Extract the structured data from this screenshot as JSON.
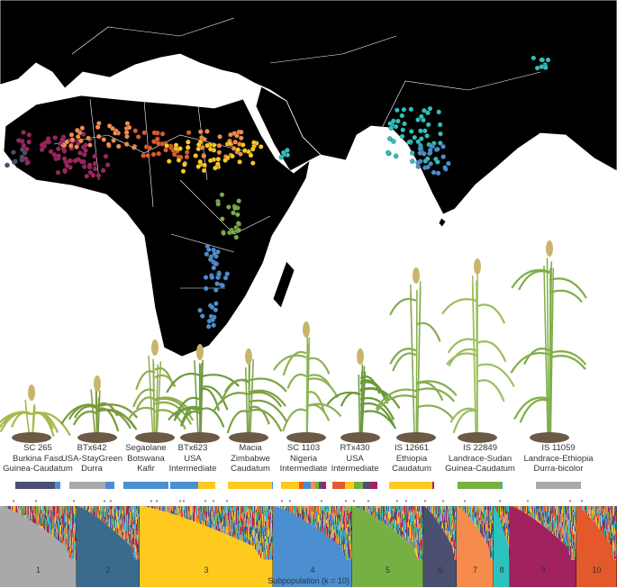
{
  "colors": {
    "1": "#a9a9a9",
    "2": "#3b6b8c",
    "3": "#fdca1d",
    "4": "#4b8fd1",
    "5": "#76b043",
    "6": "#4b4f70",
    "7": "#f68b4b",
    "8": "#2cc3bf",
    "9": "#a2225f",
    "10": "#e4592b"
  },
  "accessions": [
    {
      "name": "SC 265",
      "origin": "Burkina Faso",
      "race": "Guinea-Caudatum",
      "ancestry": [
        [
          "6",
          0.88
        ],
        [
          "4",
          0.12
        ]
      ]
    },
    {
      "name": "BTx642",
      "origin": "USA-StayGreen",
      "race": "Durra",
      "ancestry": [
        [
          "1",
          0.8
        ],
        [
          "4",
          0.2
        ]
      ]
    },
    {
      "name": "Segaolane",
      "origin": "Botswana",
      "race": "Kafir",
      "ancestry": [
        [
          "4",
          1.0
        ]
      ]
    },
    {
      "name": "BTx623",
      "origin": "USA",
      "race": "Intermediate",
      "ancestry": [
        [
          "4",
          0.62
        ],
        [
          "3",
          0.38
        ]
      ]
    },
    {
      "name": "Macia",
      "origin": "Zimbabwe",
      "race": "Caudatum",
      "ancestry": [
        [
          "3",
          0.97
        ],
        [
          "4",
          0.03
        ]
      ]
    },
    {
      "name": "SC 1103",
      "origin": "Nigeria",
      "race": "Intermediate",
      "ancestry": [
        [
          "3",
          0.4
        ],
        [
          "10",
          0.1
        ],
        [
          "4",
          0.15
        ],
        [
          "7",
          0.1
        ],
        [
          "5",
          0.08
        ],
        [
          "6",
          0.09
        ],
        [
          "9",
          0.08
        ]
      ]
    },
    {
      "name": "RTx430",
      "origin": "USA",
      "race": "Intermediate",
      "ancestry": [
        [
          "10",
          0.28
        ],
        [
          "3",
          0.2
        ],
        [
          "5",
          0.2
        ],
        [
          "6",
          0.16
        ],
        [
          "9",
          0.16
        ]
      ]
    },
    {
      "name": "IS 12661",
      "origin": "Ethiopia",
      "race": "Caudatum",
      "ancestry": [
        [
          "3",
          0.95
        ],
        [
          "9",
          0.05
        ]
      ]
    },
    {
      "name": "IS 22849",
      "origin": "Landrace-Sudan",
      "race": "Guinea-Caudatum",
      "ancestry": [
        [
          "5",
          0.98
        ],
        [
          "8",
          0.02
        ]
      ]
    },
    {
      "name": "IS 11059",
      "origin": "Landrace-Ethiopia",
      "race": "Durra-bicolor",
      "ancestry": [
        [
          "1",
          1.0
        ]
      ]
    }
  ],
  "structure": {
    "subpopulations": [
      "1",
      "2",
      "3",
      "4",
      "5",
      "6",
      "7",
      "8",
      "9",
      "10"
    ],
    "xlabel": "Subpopulation (k = 10)",
    "marker": "*"
  }
}
